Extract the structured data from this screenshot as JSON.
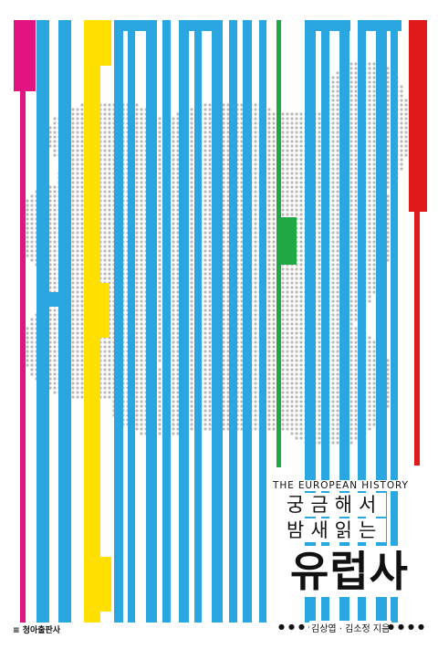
{
  "book": {
    "vertical_title": "THE EUROPEAN HISTORY",
    "english_subtitle": "THE EUROPEAN HISTORY",
    "subtitle_line1": "궁금해서",
    "subtitle_line2": "밤새읽는",
    "main_title": "유럽사",
    "author": "김상엽 · 김소정 지음",
    "publisher": "청아출판사"
  },
  "colors": {
    "blue": "#2aa7e0",
    "magenta": "#e2147f",
    "yellow": "#ffe000",
    "green": "#20a845",
    "red": "#e0191b",
    "map_dots": "#b9b9b9"
  }
}
